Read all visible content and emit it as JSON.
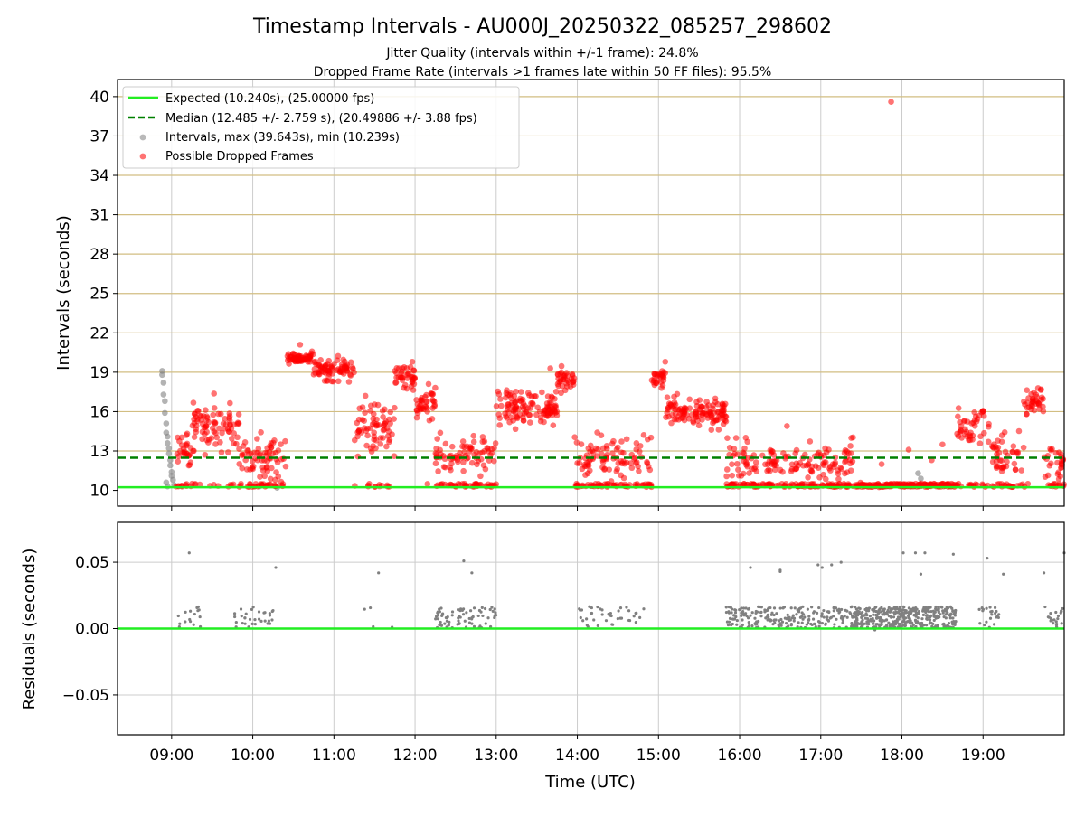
{
  "title": "Timestamp Intervals - AU000J_20250322_085257_298602",
  "subtitle_1": "Jitter Quality (intervals within +/-1 frame): 24.8%",
  "subtitle_2": "Dropped Frame Rate (intervals >1 frames late within 50 FF files): 95.5%",
  "colors": {
    "expected": "#22ee22",
    "median": "#008000",
    "intervals": "#808080",
    "dropped": "#ff0000",
    "ref_lines": "#d2be82",
    "grid": "#cccccc"
  },
  "chart_data": [
    {
      "type": "scatter",
      "title": "Timestamp Intervals - AU000J_20250322_085257_298602",
      "xlabel": "",
      "ylabel": "Intervals (seconds)",
      "xlim": [
        "08:20",
        "20:00"
      ],
      "ylim": [
        8.8,
        41.3
      ],
      "grid": true,
      "legend_placement": "top-left",
      "y_ticks": [
        10,
        13,
        16,
        19,
        22,
        25,
        28,
        31,
        34,
        37,
        40
      ],
      "y_tick_labels": [
        "10",
        "13",
        "16",
        "19",
        "22",
        "25",
        "28",
        "31",
        "34",
        "37",
        "40"
      ],
      "reference_lines": [
        10.24,
        13,
        16,
        19,
        22,
        25,
        28,
        31,
        34,
        37,
        40
      ],
      "expected": {
        "label": "Expected (10.240s), (25.00000 fps)",
        "value": 10.24
      },
      "median": {
        "label": "Median (12.485 +/- 2.759 s), (20.49886 +/- 3.88 fps)",
        "value": 12.485
      },
      "series": [
        {
          "name": "Intervals, max (39.643s), min (10.239s)",
          "color": "gray",
          "points": [
            [
              "08:53",
              19.1
            ],
            [
              "08:53",
              18.8
            ],
            [
              "08:54",
              18.2
            ],
            [
              "08:54",
              17.3
            ],
            [
              "08:55",
              16.8
            ],
            [
              "08:55",
              15.9
            ],
            [
              "08:56",
              15.1
            ],
            [
              "08:56",
              14.4
            ],
            [
              "08:57",
              14.1
            ],
            [
              "08:57",
              13.6
            ],
            [
              "08:58",
              13.2
            ],
            [
              "08:58",
              12.8
            ],
            [
              "08:59",
              12.3
            ],
            [
              "08:59",
              11.9
            ],
            [
              "09:00",
              11.4
            ],
            [
              "09:00",
              11.1
            ],
            [
              "08:56",
              10.6
            ],
            [
              "08:57",
              10.3
            ],
            [
              "09:01",
              10.8
            ],
            [
              "09:02",
              10.4
            ],
            [
              "10:05",
              10.3
            ],
            [
              "10:18",
              10.2
            ],
            [
              "17:58",
              10.4
            ],
            [
              "18:12",
              11.3
            ],
            [
              "18:14",
              10.9
            ]
          ]
        },
        {
          "name": "Possible Dropped Frames",
          "color": "red",
          "segments": [
            {
              "start": "09:03",
              "end": "09:15",
              "center": 13.0,
              "spread": 1.6,
              "base_share": 0.3,
              "n": 36
            },
            {
              "start": "09:15",
              "end": "09:50",
              "center": 14.8,
              "spread": 2.0,
              "base_share": 0.12,
              "n": 95
            },
            {
              "start": "09:50",
              "end": "10:25",
              "center": 12.5,
              "spread": 1.8,
              "base_share": 0.3,
              "n": 95
            },
            {
              "start": "10:25",
              "end": "10:45",
              "center": 20.1,
              "spread": 0.4,
              "base_share": 0.0,
              "n": 60
            },
            {
              "start": "10:45",
              "end": "11:15",
              "center": 19.2,
              "spread": 0.9,
              "base_share": 0.0,
              "n": 80
            },
            {
              "start": "11:15",
              "end": "11:45",
              "center": 14.8,
              "spread": 2.2,
              "base_share": 0.15,
              "n": 80
            },
            {
              "start": "11:45",
              "end": "12:00",
              "center": 18.6,
              "spread": 1.0,
              "base_share": 0.0,
              "n": 40
            },
            {
              "start": "12:00",
              "end": "12:15",
              "center": 16.4,
              "spread": 1.4,
              "base_share": 0.05,
              "n": 40
            },
            {
              "start": "12:15",
              "end": "13:00",
              "center": 12.6,
              "spread": 1.5,
              "base_share": 0.4,
              "n": 120
            },
            {
              "start": "13:00",
              "end": "13:45",
              "center": 16.3,
              "spread": 1.3,
              "base_share": 0.0,
              "n": 120
            },
            {
              "start": "13:45",
              "end": "13:58",
              "center": 18.4,
              "spread": 0.9,
              "base_share": 0.0,
              "n": 35
            },
            {
              "start": "13:58",
              "end": "14:55",
              "center": 12.6,
              "spread": 1.6,
              "base_share": 0.35,
              "n": 150
            },
            {
              "start": "14:55",
              "end": "15:05",
              "center": 18.6,
              "spread": 0.8,
              "base_share": 0.0,
              "n": 28
            },
            {
              "start": "15:05",
              "end": "15:50",
              "center": 16.0,
              "spread": 1.3,
              "base_share": 0.0,
              "n": 120
            },
            {
              "start": "15:50",
              "end": "17:25",
              "center": 12.2,
              "spread": 1.6,
              "base_share": 0.45,
              "n": 260
            },
            {
              "start": "17:25",
              "end": "18:40",
              "center": 10.35,
              "spread": 0.2,
              "base_share": 0.9,
              "n": 180
            },
            {
              "start": "18:40",
              "end": "19:05",
              "center": 14.9,
              "spread": 1.8,
              "base_share": 0.2,
              "n": 60
            },
            {
              "start": "19:05",
              "end": "19:30",
              "center": 12.6,
              "spread": 1.7,
              "base_share": 0.3,
              "n": 60
            },
            {
              "start": "19:30",
              "end": "19:45",
              "center": 16.6,
              "spread": 1.2,
              "base_share": 0.05,
              "n": 40
            },
            {
              "start": "19:45",
              "end": "20:00",
              "center": 12.2,
              "spread": 1.4,
              "base_share": 0.35,
              "n": 40
            }
          ],
          "extra_points": [
            [
              "17:52",
              39.6
            ],
            [
              "18:05",
              13.1
            ],
            [
              "18:22",
              12.3
            ],
            [
              "18:30",
              13.5
            ],
            [
              "16:35",
              14.9
            ],
            [
              "17:45",
              12.0
            ],
            [
              "10:01",
              10.3
            ],
            [
              "09:05",
              10.3
            ],
            [
              "12:10",
              18.1
            ],
            [
              "11:58",
              19.8
            ],
            [
              "15:05",
              19.8
            ],
            [
              "13:40",
              19.3
            ],
            [
              "10:35",
              21.1
            ]
          ]
        }
      ],
      "legend": [
        "Expected (10.240s), (25.00000 fps)",
        "Median (12.485 +/- 2.759 s), (20.49886 +/- 3.88 fps)",
        "Intervals, max (39.643s), min (10.239s)",
        "Possible Dropped Frames"
      ]
    },
    {
      "type": "scatter",
      "xlabel": "Time (UTC)",
      "ylabel": "Residuals (seconds)",
      "xlim": [
        "08:20",
        "20:00"
      ],
      "ylim": [
        -0.08,
        0.08
      ],
      "grid": true,
      "x_ticks": [
        "09:00",
        "10:00",
        "11:00",
        "12:00",
        "13:00",
        "14:00",
        "15:00",
        "16:00",
        "17:00",
        "18:00",
        "19:00"
      ],
      "y_ticks": [
        0.05,
        0.0,
        -0.05
      ],
      "y_tick_labels": [
        "0.05",
        "0.00",
        "−0.05"
      ],
      "zero_line": 0.0,
      "series": [
        {
          "name": "",
          "color": "gray",
          "clusters": [
            {
              "start": "08:59",
              "end": "09:23",
              "n": 16
            },
            {
              "start": "09:45",
              "end": "10:15",
              "n": 32
            },
            {
              "start": "11:20",
              "end": "11:30",
              "n": 3
            },
            {
              "start": "12:15",
              "end": "13:00",
              "n": 75
            },
            {
              "start": "14:00",
              "end": "14:50",
              "n": 40
            },
            {
              "start": "15:50",
              "end": "17:25",
              "n": 220
            },
            {
              "start": "17:25",
              "end": "18:40",
              "n": 380
            },
            {
              "start": "18:57",
              "end": "19:12",
              "n": 22
            },
            {
              "start": "19:45",
              "end": "20:00",
              "n": 22
            }
          ],
          "outliers": [
            [
              "09:13",
              0.057
            ],
            [
              "10:17",
              0.046
            ],
            [
              "11:33",
              0.042
            ],
            [
              "11:43",
              0.001
            ],
            [
              "12:36",
              0.051
            ],
            [
              "12:42",
              0.042
            ],
            [
              "16:08",
              0.046
            ],
            [
              "16:30",
              0.044
            ],
            [
              "16:30",
              0.043
            ],
            [
              "16:58",
              0.048
            ],
            [
              "17:01",
              0.046
            ],
            [
              "17:08",
              0.048
            ],
            [
              "17:15",
              0.05
            ],
            [
              "18:01",
              0.057
            ],
            [
              "18:10",
              0.057
            ],
            [
              "18:14",
              0.041
            ],
            [
              "18:17",
              0.057
            ],
            [
              "18:38",
              0.056
            ],
            [
              "19:03",
              0.053
            ],
            [
              "19:15",
              0.041
            ],
            [
              "19:45",
              0.042
            ],
            [
              "20:00",
              0.057
            ],
            [
              "17:40",
              -0.001
            ]
          ]
        }
      ]
    }
  ]
}
